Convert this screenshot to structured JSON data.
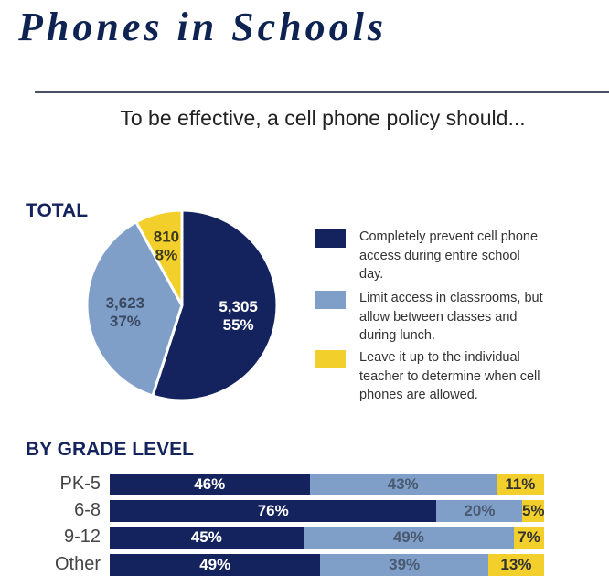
{
  "header": {
    "title": "Phones in Schools",
    "subtitle": "To be effective, a cell phone policy should..."
  },
  "colors": {
    "navy": "#14235e",
    "light": "#7f9fc9",
    "yellow": "#f2cf2a"
  },
  "chart_data": [
    {
      "type": "pie",
      "title": "TOTAL",
      "slices": [
        {
          "name": "Completely prevent cell phone access during entire school day.",
          "count": "5,305",
          "percent_label": "55%",
          "value": 55
        },
        {
          "name": "Limit access in classrooms, but allow between classes and during lunch.",
          "count": "3,623",
          "percent_label": "37%",
          "value": 37
        },
        {
          "name": "Leave it up to the individual teacher to determine when cell phones are allowed.",
          "count": "810",
          "percent_label": "8%",
          "value": 8
        }
      ],
      "legend_placement": "right"
    },
    {
      "type": "bar",
      "stacked": true,
      "orientation": "horizontal",
      "title": "BY GRADE LEVEL",
      "categories": [
        "PK-5",
        "6-8",
        "9-12",
        "Other"
      ],
      "series": [
        {
          "name": "Completely prevent",
          "values": [
            46,
            76,
            45,
            49
          ],
          "labels": [
            "46%",
            "76%",
            "45%",
            "49%"
          ]
        },
        {
          "name": "Limit access",
          "values": [
            43,
            20,
            49,
            39
          ],
          "labels": [
            "43%",
            "20%",
            "49%",
            "39%"
          ]
        },
        {
          "name": "Leave it up to teacher",
          "values": [
            11,
            5,
            7,
            13
          ],
          "labels": [
            "11%",
            "5%",
            "7%",
            "13%"
          ]
        }
      ]
    }
  ]
}
